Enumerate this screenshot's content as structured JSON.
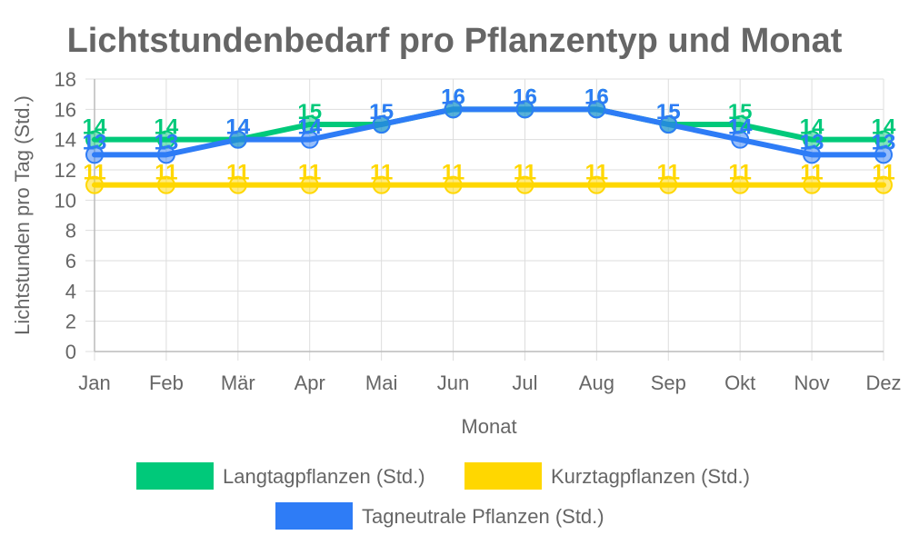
{
  "chart_data": {
    "type": "line",
    "title": "Lichtstundenbedarf pro Pflanzentyp und Monat",
    "xlabel": "Monat",
    "ylabel": "Lichtstunden pro Tag (Std.)",
    "categories": [
      "Jan",
      "Feb",
      "Mär",
      "Apr",
      "Mai",
      "Jun",
      "Jul",
      "Aug",
      "Sep",
      "Okt",
      "Nov",
      "Dez"
    ],
    "ylim": [
      0,
      18
    ],
    "yticks": [
      "0",
      "2",
      "4",
      "6",
      "8",
      "10",
      "12",
      "14",
      "16",
      "18"
    ],
    "grid": true,
    "legend_position": "bottom",
    "series": [
      {
        "name": "Langtagpflanzen (Std.)",
        "color": "#00c97a",
        "values": [
          14,
          14,
          14,
          15,
          15,
          16,
          16,
          16,
          15,
          15,
          14,
          14
        ],
        "labels": [
          "14",
          "14",
          "14",
          "15",
          "15",
          "16",
          "16",
          "16",
          "15",
          "15",
          "14",
          "14"
        ]
      },
      {
        "name": "Kurztagpflanzen (Std.)",
        "color": "#ffd700",
        "values": [
          11,
          11,
          11,
          11,
          11,
          11,
          11,
          11,
          11,
          11,
          11,
          11
        ],
        "labels": [
          "11",
          "11",
          "11",
          "11",
          "11",
          "11",
          "11",
          "11",
          "11",
          "11",
          "11",
          "11"
        ]
      },
      {
        "name": "Tagneutrale Pflanzen (Std.)",
        "color": "#2e7cf6",
        "values": [
          13,
          13,
          14,
          14,
          15,
          16,
          16,
          16,
          15,
          14,
          13,
          13
        ],
        "labels": [
          "13",
          "13",
          "14",
          "14",
          "15",
          "16",
          "16",
          "16",
          "15",
          "14",
          "13",
          "13"
        ]
      }
    ]
  }
}
